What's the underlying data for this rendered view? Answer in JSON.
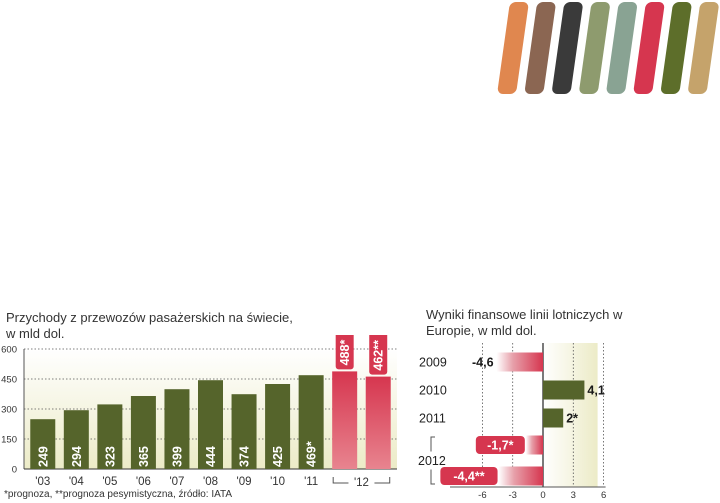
{
  "palette": [
    "#e0874f",
    "#8b6652",
    "#3a3a3a",
    "#8e9b6e",
    "#89a393",
    "#d6364f",
    "#5d6e2a",
    "#c5a36b"
  ],
  "colors": {
    "bar_actual": "#55642b",
    "bar_forecast": "#d6364f",
    "area_bg_top": "#ffffff",
    "area_bg_bottom": "#ecebc7"
  },
  "footnote": "*prognoza, **prognoza pesymistyczna, źródło: IATA",
  "chart_data": [
    {
      "type": "bar",
      "title": "Przychody z przewozów pasażerskich na świecie, w mld dol.",
      "categories": [
        "'03",
        "'04",
        "'05",
        "'06",
        "'07",
        "'08",
        "'09",
        "'10",
        "'11",
        "'12",
        "'12"
      ],
      "values": [
        249,
        294,
        323,
        365,
        399,
        444,
        374,
        425,
        469,
        488,
        462
      ],
      "labels": [
        "249",
        "294",
        "323",
        "365",
        "399",
        "444",
        "374",
        "425",
        "469*",
        "488*",
        "462**"
      ],
      "forecast": [
        false,
        false,
        false,
        false,
        false,
        false,
        false,
        false,
        false,
        true,
        true
      ],
      "ylim": [
        0,
        600
      ],
      "yticks": [
        0,
        150,
        300,
        450,
        600
      ],
      "grid": true
    },
    {
      "type": "bar",
      "orientation": "horizontal",
      "title": "Wyniki finansowe linii lotniczych w Europie, w mld dol.",
      "categories": [
        "2009",
        "2010",
        "2011",
        "2012",
        "2012"
      ],
      "values": [
        -4.6,
        4.1,
        2,
        -1.7,
        -4.4
      ],
      "labels": [
        "-4,6",
        "4,1",
        "2*",
        "-1,7*",
        "-4,4**"
      ],
      "forecast": [
        false,
        false,
        false,
        true,
        true
      ],
      "xlim": [
        -6,
        6
      ],
      "xticks": [
        -6,
        -3,
        0,
        3,
        6
      ],
      "grid": true
    }
  ]
}
